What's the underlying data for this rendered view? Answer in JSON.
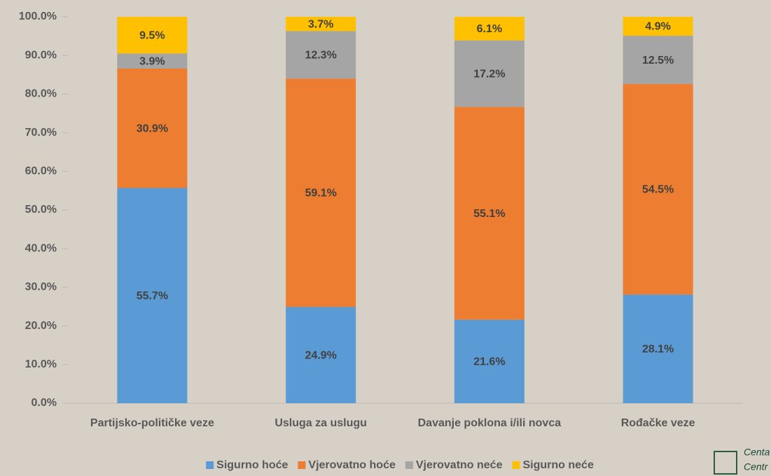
{
  "chart_data": {
    "type": "stacked_bar",
    "categories": [
      "Partijsko-političke veze",
      "Usluga za uslugu",
      "Davanje poklona i/ili novca",
      "Rođačke veze"
    ],
    "series": [
      {
        "name": "Sigurno hoće",
        "color": "#5b9bd5",
        "values": [
          55.7,
          24.9,
          21.6,
          28.1
        ],
        "value_labels": [
          "55.7%",
          "24.9%",
          "21.6%",
          "28.1%"
        ]
      },
      {
        "name": "Vjerovatno hoće",
        "color": "#ed7d31",
        "values": [
          30.9,
          59.1,
          55.1,
          54.5
        ],
        "value_labels": [
          "30.9%",
          "59.1%",
          "55.1%",
          "54.5%"
        ]
      },
      {
        "name": "Vjerovatno neće",
        "color": "#a5a5a5",
        "values": [
          3.9,
          12.3,
          17.2,
          12.5
        ],
        "value_labels": [
          "3.9%",
          "12.3%",
          "17.2%",
          "12.5%"
        ]
      },
      {
        "name": "Sigurno neće",
        "color": "#ffc000",
        "values": [
          9.5,
          3.7,
          6.1,
          4.9
        ],
        "value_labels": [
          "9.5%",
          "3.7%",
          "6.1%",
          "4.9%"
        ]
      }
    ],
    "ylim": [
      0,
      100
    ],
    "yticks": [
      {
        "value": 0,
        "label": "0.0%"
      },
      {
        "value": 10,
        "label": "10.0%"
      },
      {
        "value": 20,
        "label": "20.0%"
      },
      {
        "value": 30,
        "label": "30.0%"
      },
      {
        "value": 40,
        "label": "40.0%"
      },
      {
        "value": 50,
        "label": "50.0%"
      },
      {
        "value": 60,
        "label": "60.0%"
      },
      {
        "value": 70,
        "label": "70.0%"
      },
      {
        "value": 80,
        "label": "80.0%"
      },
      {
        "value": 90,
        "label": "90.0%"
      },
      {
        "value": 100,
        "label": "100.0%"
      }
    ],
    "legend": "bottom"
  },
  "logo": {
    "lines": [
      "Centa",
      "Centr"
    ]
  }
}
